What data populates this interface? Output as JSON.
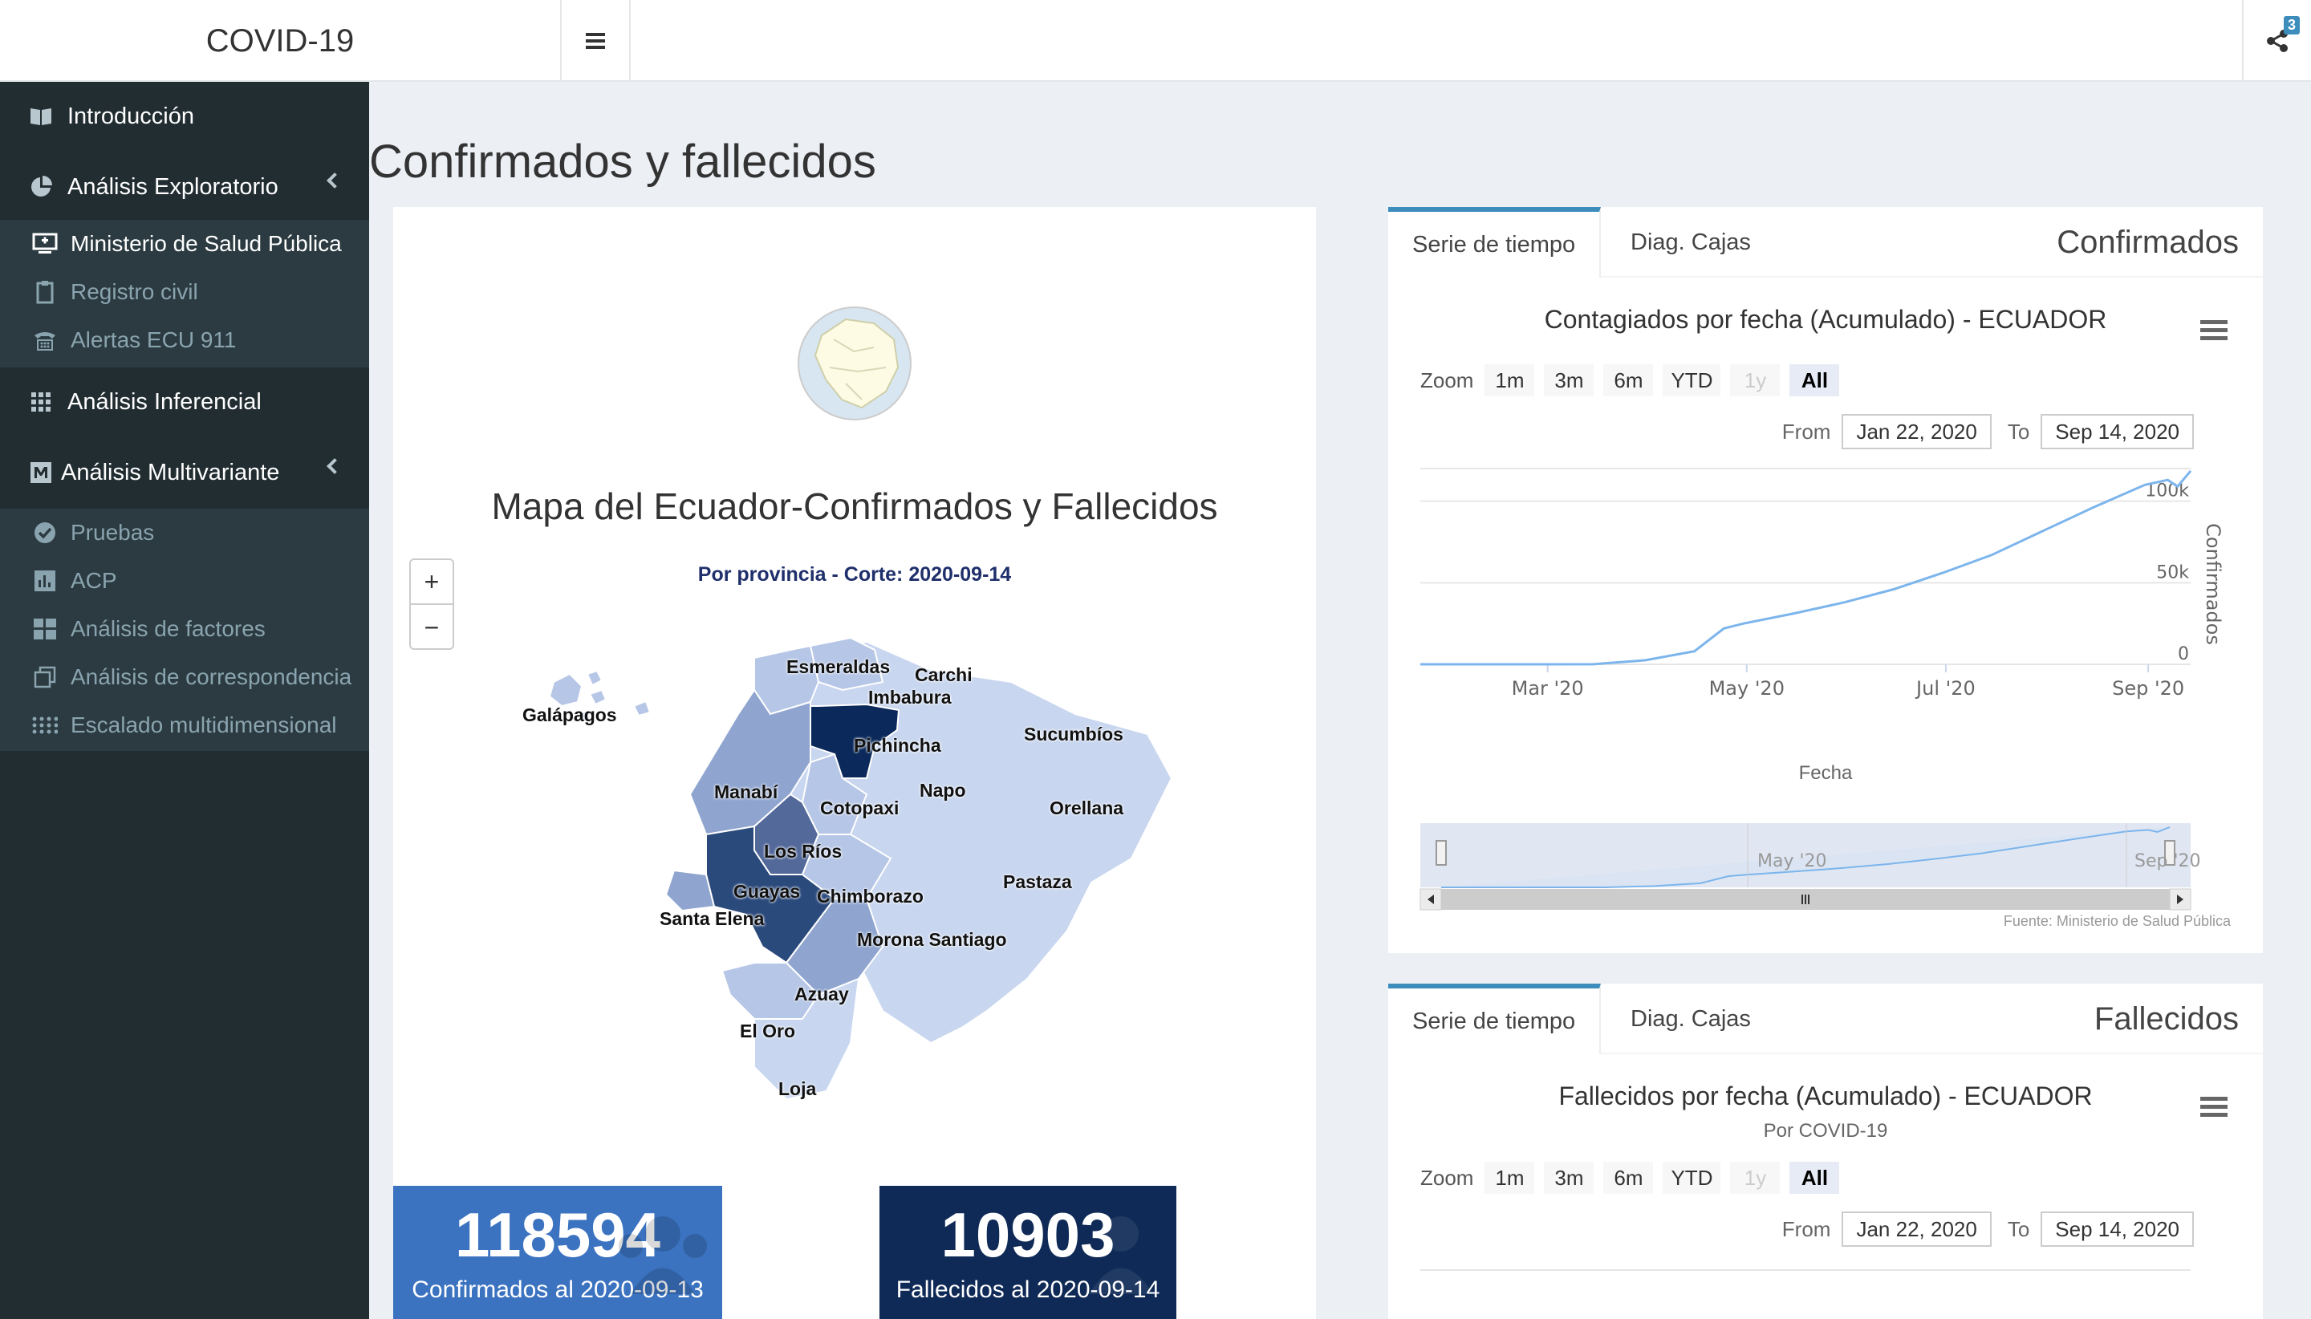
{
  "app": {
    "title": "COVID-19",
    "share_count": "3"
  },
  "sidebar": {
    "items": [
      {
        "label": "Introducción",
        "icon": "book-icon"
      },
      {
        "label": "Análisis Exploratorio",
        "icon": "pie-chart-icon"
      },
      {
        "label": "Análisis Inferencial",
        "icon": "grid-icon"
      },
      {
        "label": "Análisis Multivariante",
        "icon": "m-square-icon"
      }
    ],
    "sub_exploratorio": [
      {
        "label": "Ministerio de Salud Pública",
        "icon": "desktop-icon"
      },
      {
        "label": "Registro civil",
        "icon": "clipboard-icon"
      },
      {
        "label": "Alertas ECU 911",
        "icon": "phone-icon"
      }
    ],
    "sub_multivariante": [
      {
        "label": "Pruebas",
        "icon": "check-circle-icon"
      },
      {
        "label": "ACP",
        "icon": "bar-chart-icon"
      },
      {
        "label": "Análisis de factores",
        "icon": "th-large-icon"
      },
      {
        "label": "Análisis de correspondencia",
        "icon": "clone-icon"
      },
      {
        "label": "Escalado multidimensional",
        "icon": "dots-icon"
      }
    ]
  },
  "page": {
    "title": "Confirmados y fallecidos"
  },
  "map": {
    "title": "Mapa del Ecuador-Confirmados y Fallecidos",
    "subtitle": "Por provincia - Corte: 2020-09-14",
    "zoom_in": "+",
    "zoom_out": "−",
    "provinces": [
      "Galápagos",
      "Esmeraldas",
      "Carchi",
      "Imbabura",
      "Pichincha",
      "Sucumbíos",
      "Napo",
      "Manabí",
      "Cotopaxi",
      "Orellana",
      "Los Ríos",
      "Pastaza",
      "Guayas",
      "Chimborazo",
      "Santa Elena",
      "Morona Santiago",
      "Azuay",
      "El Oro",
      "Loja"
    ],
    "colors": {
      "darkest": "#0b2a5b",
      "dark": "#2b4a7c",
      "mid": "#53699a",
      "light": "#8fa5cf",
      "lighter": "#b6c6e6",
      "lightest": "#c8d6ef"
    }
  },
  "stats": {
    "confirmed": {
      "value": "118594",
      "caption": "Confirmados al 2020-09-13",
      "color": "#3b73c0"
    },
    "deaths": {
      "value": "10903",
      "caption": "Fallecidos al 2020-09-14",
      "color": "#0f2a56"
    }
  },
  "card1": {
    "tabs": [
      "Serie de tiempo",
      "Diag. Cajas"
    ],
    "title": "Confirmados",
    "chart_title": "Contagiados por fecha (Acumulado) - ECUADOR",
    "zoom_label": "Zoom",
    "zoom_buttons": [
      "1m",
      "3m",
      "6m",
      "YTD",
      "1y",
      "All"
    ],
    "from_label": "From",
    "from_value": "Jan 22, 2020",
    "to_label": "To",
    "to_value": "Sep 14, 2020",
    "y_title": "Confirmados",
    "x_title": "Fecha",
    "y_ticks": [
      "0",
      "50k",
      "100k"
    ],
    "x_ticks": [
      "Mar '20",
      "May '20",
      "Jul '20",
      "Sep '20"
    ],
    "nav_labels": [
      "May '20",
      "Sep '20"
    ],
    "credits": "Fuente: Ministerio de Salud Pública"
  },
  "card2": {
    "tabs": [
      "Serie de tiempo",
      "Diag. Cajas"
    ],
    "title": "Fallecidos",
    "chart_title": "Fallecidos por fecha (Acumulado) - ECUADOR",
    "chart_subtitle": "Por COVID-19",
    "zoom_label": "Zoom",
    "zoom_buttons": [
      "1m",
      "3m",
      "6m",
      "YTD",
      "1y",
      "All"
    ],
    "from_label": "From",
    "from_value": "Jan 22, 2020",
    "to_label": "To",
    "to_value": "Sep 14, 2020"
  },
  "chart_data": {
    "type": "line",
    "title": "Contagiados por fecha (Acumulado) - ECUADOR",
    "xlabel": "Fecha",
    "ylabel": "Confirmados",
    "ylim": [
      0,
      120000
    ],
    "x": [
      "2020-01-22",
      "2020-02-29",
      "2020-03-15",
      "2020-03-31",
      "2020-04-15",
      "2020-04-24",
      "2020-04-30",
      "2020-05-15",
      "2020-05-31",
      "2020-06-15",
      "2020-06-30",
      "2020-07-15",
      "2020-07-31",
      "2020-08-15",
      "2020-08-31",
      "2020-09-07",
      "2020-09-10",
      "2020-09-14"
    ],
    "series": [
      {
        "name": "Confirmados",
        "values": [
          0,
          0,
          50,
          2500,
          8000,
          22000,
          25000,
          31000,
          38000,
          46000,
          56000,
          67000,
          82000,
          96000,
          110000,
          113000,
          109000,
          118594
        ]
      }
    ],
    "navigator_range": [
      "2020-01-22",
      "2020-09-14"
    ]
  }
}
